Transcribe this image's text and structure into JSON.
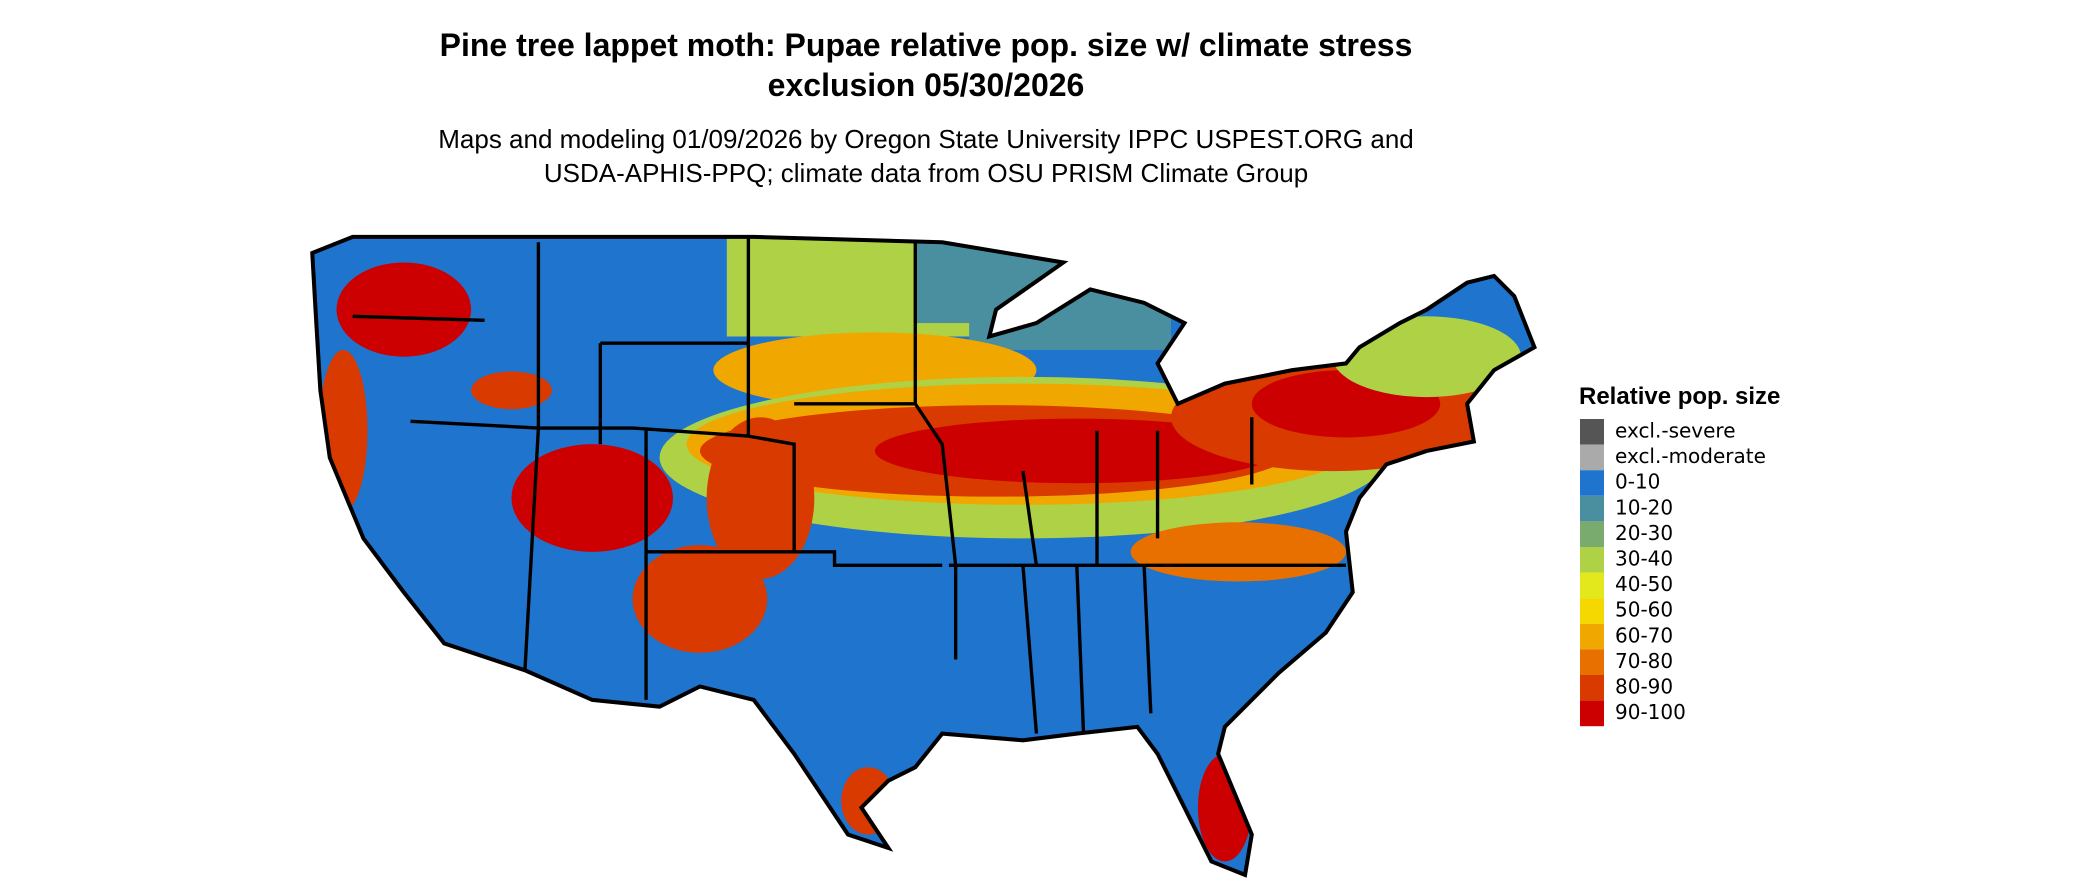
{
  "header": {
    "title_lines": [
      "Pine tree lappet moth: Pupae relative pop. size w/ climate stress",
      "exclusion 05/30/2026"
    ],
    "subtitle_lines": [
      "Maps and modeling 01/09/2026 by Oregon State University IPPC USPEST.ORG and",
      "USDA-APHIS-PPQ; climate data from OSU PRISM Climate Group"
    ]
  },
  "legend": {
    "title": "Relative pop. size",
    "items": [
      {
        "label": "excl.-severe",
        "color": "#555555"
      },
      {
        "label": "excl.-moderate",
        "color": "#aaaaaa"
      },
      {
        "label": "0-10",
        "color": "#1f74cd"
      },
      {
        "label": "10-20",
        "color": "#4a8fa0"
      },
      {
        "label": "20-30",
        "color": "#7aab6e"
      },
      {
        "label": "30-40",
        "color": "#afd145"
      },
      {
        "label": "40-50",
        "color": "#e2e81c"
      },
      {
        "label": "50-60",
        "color": "#f5d800"
      },
      {
        "label": "60-70",
        "color": "#f0a800"
      },
      {
        "label": "70-80",
        "color": "#e87000"
      },
      {
        "label": "80-90",
        "color": "#d83a00"
      },
      {
        "label": "90-100",
        "color": "#cc0000"
      }
    ]
  }
}
